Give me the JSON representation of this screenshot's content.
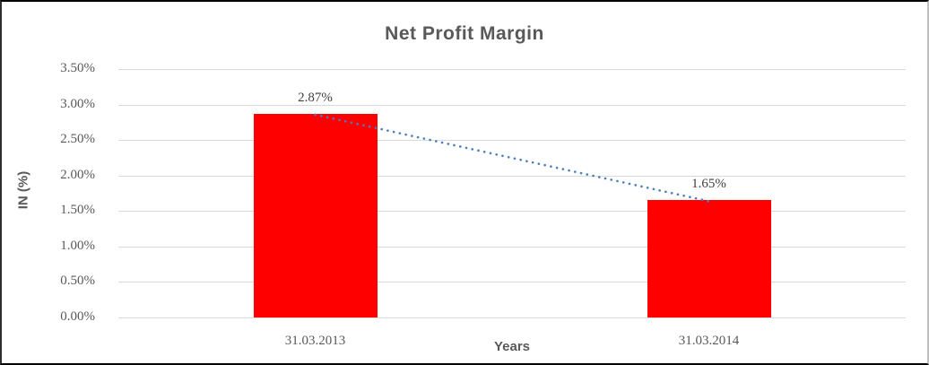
{
  "chart_data": {
    "type": "bar",
    "title": "Net Profit Margin",
    "categories": [
      "31.03.2013",
      "31.03.2014"
    ],
    "series": [
      {
        "name": "Net Profit Margin",
        "values": [
          2.87,
          1.65
        ]
      }
    ],
    "data_labels": [
      "2.87%",
      "1.65%"
    ],
    "xlabel": "Years",
    "ylabel": "IN (%)",
    "ylim": [
      0,
      3.5
    ],
    "ytick_step": 0.5,
    "ytick_labels": [
      "0.00%",
      "0.50%",
      "1.00%",
      "1.50%",
      "2.00%",
      "2.50%",
      "3.00%",
      "3.50%"
    ],
    "grid": true,
    "legend_position": "none",
    "bar_color": "#ff0000",
    "trendline": {
      "type": "linear",
      "style": "dotted",
      "color": "#4a7ebb"
    }
  },
  "colors": {
    "title_text": "#595959",
    "tick_text": "#595959",
    "gridline": "#d9d9d9",
    "background": "#ffffff",
    "bar": "#ff0000",
    "trendline": "#4a7ebb"
  }
}
